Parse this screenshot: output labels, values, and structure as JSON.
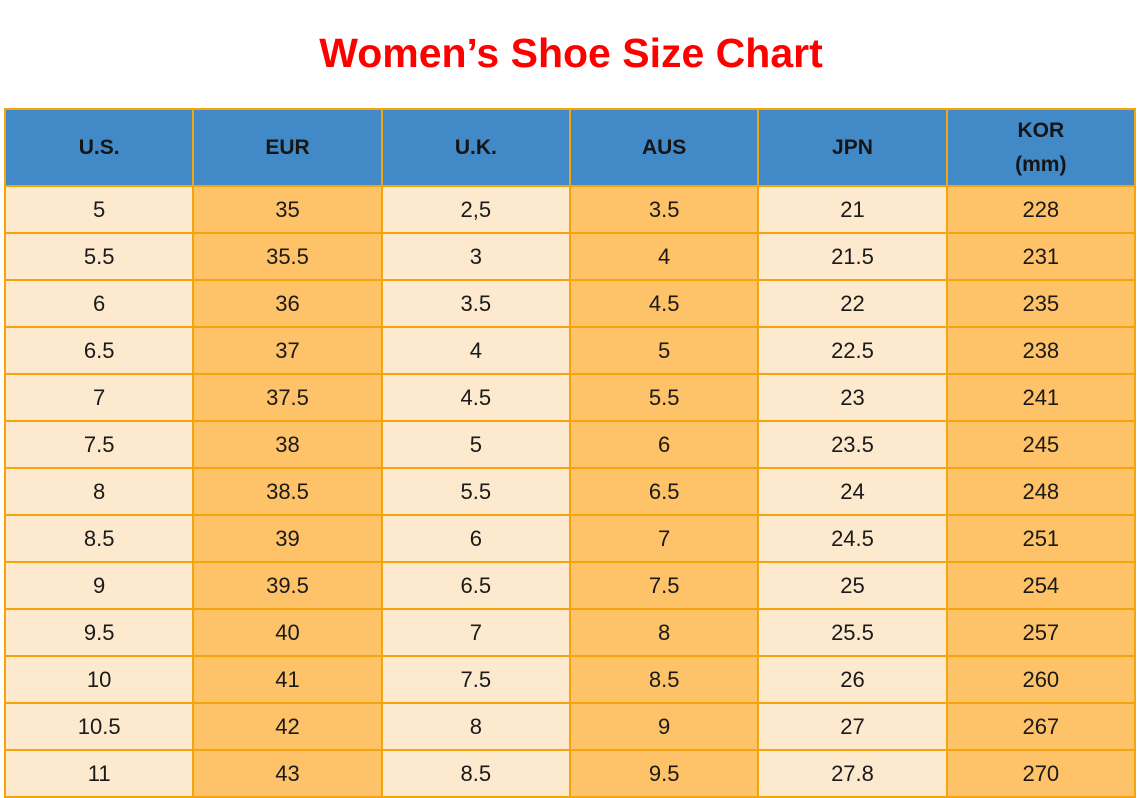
{
  "page_title": "Women’s Shoe Size Chart",
  "table": {
    "display_headers": [
      "U.S.",
      "EUR",
      "U.K.",
      "AUS",
      "JPN",
      "KOR\n(mm)"
    ]
  },
  "chart_data": {
    "type": "table",
    "title": "Women’s Shoe Size Chart",
    "columns": [
      "U.S.",
      "EUR",
      "U.K.",
      "AUS",
      "JPN",
      "KOR (mm)"
    ],
    "rows": [
      [
        "5",
        "35",
        "2,5",
        "3.5",
        "21",
        "228"
      ],
      [
        "5.5",
        "35.5",
        "3",
        "4",
        "21.5",
        "231"
      ],
      [
        "6",
        "36",
        "3.5",
        "4.5",
        "22",
        "235"
      ],
      [
        "6.5",
        "37",
        "4",
        "5",
        "22.5",
        "238"
      ],
      [
        "7",
        "37.5",
        "4.5",
        "5.5",
        "23",
        "241"
      ],
      [
        "7.5",
        "38",
        "5",
        "6",
        "23.5",
        "245"
      ],
      [
        "8",
        "38.5",
        "5.5",
        "6.5",
        "24",
        "248"
      ],
      [
        "8.5",
        "39",
        "6",
        "7",
        "24.5",
        "251"
      ],
      [
        "9",
        "39.5",
        "6.5",
        "7.5",
        "25",
        "254"
      ],
      [
        "9.5",
        "40",
        "7",
        "8",
        "25.5",
        "257"
      ],
      [
        "10",
        "41",
        "7.5",
        "8.5",
        "26",
        "260"
      ],
      [
        "10.5",
        "42",
        "8",
        "9",
        "27",
        "267"
      ],
      [
        "11",
        "43",
        "8.5",
        "9.5",
        "27.8",
        "270"
      ]
    ]
  },
  "colors": {
    "title": "#FF0000",
    "header_bg": "#4289C7",
    "header_text": "#151515",
    "row_cream": "#FDE9CE",
    "row_orange": "#FEC268",
    "grid_border": "#F5A409",
    "cell_text": "#1A1A1A",
    "page_bg": "#FFFFFF"
  }
}
